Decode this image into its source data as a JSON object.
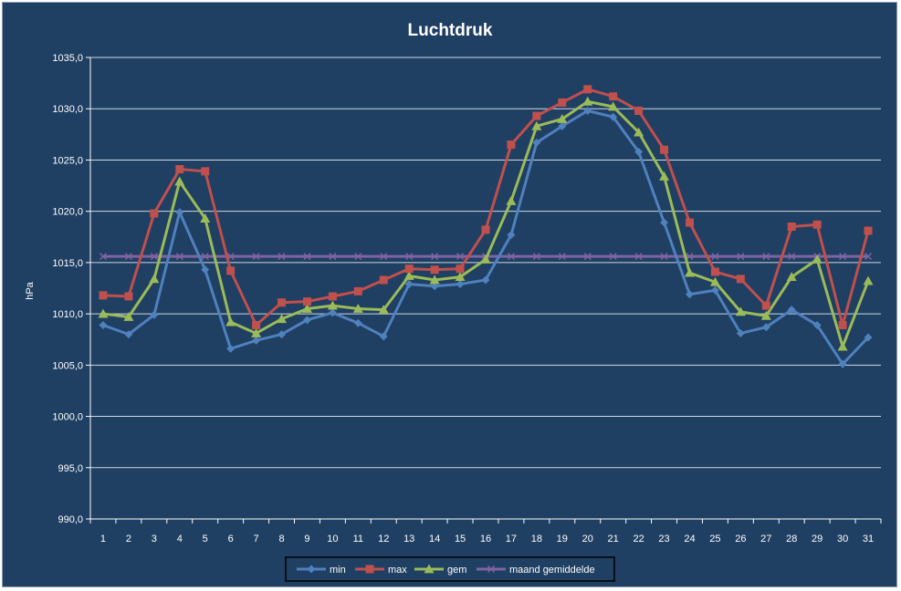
{
  "chart_data": {
    "type": "line",
    "title": "Luchtdruk",
    "xlabel": "",
    "ylabel": "hPa",
    "ylim": [
      990,
      1035
    ],
    "y_ticks": [
      "990,0",
      "995,0",
      "1000,0",
      "1005,0",
      "1010,0",
      "1015,0",
      "1020,0",
      "1025,0",
      "1030,0",
      "1035,0"
    ],
    "categories": [
      "1",
      "2",
      "3",
      "4",
      "5",
      "6",
      "7",
      "8",
      "9",
      "10",
      "11",
      "12",
      "13",
      "14",
      "15",
      "16",
      "17",
      "18",
      "19",
      "20",
      "21",
      "22",
      "23",
      "24",
      "25",
      "26",
      "27",
      "28",
      "29",
      "30",
      "31"
    ],
    "grid": "horizontal",
    "legend_position": "bottom",
    "series": [
      {
        "name": "min",
        "color": "#4f81bd",
        "marker": "diamond",
        "values": [
          1008.9,
          1008.0,
          1009.9,
          1019.9,
          1014.3,
          1006.6,
          1007.4,
          1008.0,
          1009.4,
          1010.1,
          1009.1,
          1007.8,
          1012.9,
          1012.7,
          1012.9,
          1013.3,
          1017.7,
          1026.7,
          1028.3,
          1029.8,
          1029.2,
          1025.8,
          1018.9,
          1011.9,
          1012.3,
          1008.1,
          1008.7,
          1010.4,
          1008.9,
          1005.1,
          1007.7
        ]
      },
      {
        "name": "max",
        "color": "#c0504d",
        "marker": "square",
        "values": [
          1011.8,
          1011.7,
          1019.8,
          1024.1,
          1023.9,
          1014.2,
          1008.9,
          1011.1,
          1011.2,
          1011.7,
          1012.2,
          1013.3,
          1014.4,
          1014.3,
          1014.4,
          1018.2,
          1026.5,
          1029.3,
          1030.6,
          1031.9,
          1031.2,
          1029.8,
          1026.0,
          1018.9,
          1014.1,
          1013.4,
          1010.8,
          1018.5,
          1018.7,
          1008.9,
          1018.1
        ]
      },
      {
        "name": "gem",
        "color": "#9bbb59",
        "marker": "triangle",
        "values": [
          1010.0,
          1009.7,
          1013.4,
          1022.9,
          1019.3,
          1009.2,
          1008.1,
          1009.5,
          1010.5,
          1010.8,
          1010.5,
          1010.4,
          1013.7,
          1013.3,
          1013.6,
          1015.3,
          1021.0,
          1028.3,
          1029.0,
          1030.7,
          1030.2,
          1027.7,
          1023.4,
          1014.0,
          1013.1,
          1010.2,
          1009.8,
          1013.6,
          1015.3,
          1006.8,
          1013.2
        ]
      },
      {
        "name": "maand gemiddelde",
        "color": "#8064a2",
        "marker": "x",
        "values": [
          1015.6,
          1015.6,
          1015.6,
          1015.6,
          1015.6,
          1015.6,
          1015.6,
          1015.6,
          1015.6,
          1015.6,
          1015.6,
          1015.6,
          1015.6,
          1015.6,
          1015.6,
          1015.6,
          1015.6,
          1015.6,
          1015.6,
          1015.6,
          1015.6,
          1015.6,
          1015.6,
          1015.6,
          1015.6,
          1015.6,
          1015.6,
          1015.6,
          1015.6,
          1015.6,
          1015.6
        ]
      }
    ],
    "colors": {
      "background": "#1f3f63",
      "gridline": "#cfd8e3",
      "axis": "#ffffff",
      "text": "#ffffff"
    }
  }
}
